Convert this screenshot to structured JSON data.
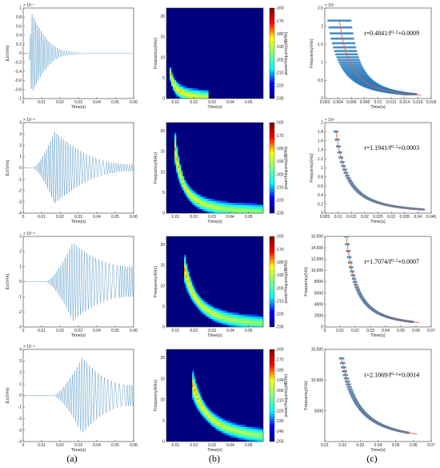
{
  "panel_labels": [
    "(a)",
    "(b)",
    "(c)"
  ],
  "colors": {
    "waveform": "#1f77b4",
    "scatter": "#2b7bc0",
    "fit": "#e8622a",
    "spec_bg": "#00007f",
    "colorbar": [
      "#00007f",
      "#0000ff",
      "#00ffff",
      "#7fff7f",
      "#ffff00",
      "#ff0000",
      "#7f0000"
    ]
  },
  "chart_data": [
    {
      "type": "line",
      "panel": "a",
      "row": 1,
      "title": "",
      "xlabel": "Time(s)",
      "ylabel": "Ez(V/m)",
      "y_exponent": "× 10⁻⁷",
      "xlim": [
        0,
        0.06
      ],
      "ylim": [
        -1,
        1
      ],
      "xticks": [
        "0",
        "0.01",
        "0.02",
        "0.03",
        "0.04",
        "0.05",
        "0.06"
      ],
      "yticks": [
        "-1",
        "-0.8",
        "-0.6",
        "-0.4",
        "-0.2",
        "0",
        "0.2",
        "0.4",
        "0.6",
        "0.8",
        "1"
      ],
      "envelope": {
        "onset": 0.003,
        "peak_time": 0.0045,
        "peak_amplitude": 0.9,
        "decay_end": 0.025,
        "tail_amplitude": 0.05
      }
    },
    {
      "type": "heatmap",
      "panel": "b",
      "row": 1,
      "xlabel": "Time(s)",
      "ylabel": "Frequency(kHz)",
      "colorbar_label": "power/frequency(dB/Hz)",
      "xlim": [
        0.005,
        0.058
      ],
      "ylim": [
        0,
        22
      ],
      "xticks": [
        "0.01",
        "0.02",
        "0.03",
        "0.04",
        "0.05"
      ],
      "yticks": [
        "0",
        "5",
        "10",
        "15",
        "20"
      ],
      "colorbar_ticks": [
        "-160",
        "-170",
        "-180",
        "-190",
        "-200",
        "-210",
        "-220",
        "-230"
      ],
      "clim": [
        -230,
        -160
      ],
      "ridge": {
        "a": 0.4841,
        "b": 0.0009,
        "t_start": 0.007,
        "t_end": 0.028
      }
    },
    {
      "type": "scatter",
      "panel": "c",
      "row": 1,
      "xlabel": "Time(s)",
      "ylabel": "Frequency(Hz)",
      "y_exponent": "× 10⁴",
      "annotation": "t=0.4841/f⁰·⁵+0.0009",
      "xlim": [
        0.002,
        0.018
      ],
      "ylim": [
        0,
        2.5
      ],
      "xticks": [
        "0.002",
        "0.004",
        "0.006",
        "0.008",
        "0.01",
        "0.012",
        "0.014",
        "0.016",
        "0.018"
      ],
      "yticks": [
        "0",
        "0.5",
        "1",
        "1.5",
        "2",
        "2.5"
      ],
      "fit": {
        "a": 0.4841,
        "b": 0.0009,
        "t_start": 0.0042,
        "t_end": 0.0165
      },
      "scatter_range": {
        "t_start": 0.0042,
        "t_end": 0.015,
        "spread": 0.003
      }
    },
    {
      "type": "line",
      "panel": "a",
      "row": 2,
      "title": "",
      "xlabel": "Time(s)",
      "ylabel": "Ez(V/m)",
      "y_exponent": "× 10⁻⁸",
      "xlim": [
        0,
        0.06
      ],
      "ylim": [
        -4,
        4
      ],
      "xticks": [
        "0",
        "0.01",
        "0.02",
        "0.03",
        "0.04",
        "0.05",
        "0.06"
      ],
      "yticks": [
        "-4",
        "-3",
        "-2",
        "-1",
        "0",
        "1",
        "2",
        "3",
        "4"
      ],
      "envelope": {
        "onset": 0.005,
        "peak_time": 0.017,
        "peak_amplitude": 3.2,
        "decay_end": 0.06,
        "tail_amplitude": 0.3
      }
    },
    {
      "type": "heatmap",
      "panel": "b",
      "row": 2,
      "xlabel": "Time(s)",
      "ylabel": "Frequency(kHz)",
      "colorbar_label": "power/frequency(dB/Hz)",
      "xlim": [
        0.005,
        0.058
      ],
      "ylim": [
        0,
        22
      ],
      "xticks": [
        "0.01",
        "0.02",
        "0.03",
        "0.04",
        "0.05"
      ],
      "yticks": [
        "0",
        "5",
        "10",
        "15",
        "20"
      ],
      "colorbar_ticks": [
        "-160",
        "-170",
        "-180",
        "-190",
        "-200",
        "-210",
        "-220",
        "-230"
      ],
      "clim": [
        -230,
        -160
      ],
      "ridge": {
        "a": 1.1941,
        "b": 0.0003,
        "t_start": 0.009,
        "t_end": 0.058
      }
    },
    {
      "type": "scatter",
      "panel": "c",
      "row": 2,
      "xlabel": "Time(s)",
      "ylabel": "Frequency(Hz)",
      "y_exponent": "× 10⁴",
      "annotation": "t=1.1941/f⁰·⁵+0.0003",
      "xlim": [
        0.005,
        0.045
      ],
      "ylim": [
        0,
        2
      ],
      "xticks": [
        "0.005",
        "0.01",
        "0.015",
        "0.02",
        "0.025",
        "0.03",
        "0.035",
        "0.04",
        "0.045"
      ],
      "yticks": [
        "0",
        "0.2",
        "0.4",
        "0.6",
        "0.8",
        "1",
        "1.2",
        "1.4",
        "1.6",
        "1.8",
        "2"
      ],
      "fit": {
        "a": 1.1941,
        "b": 0.0003,
        "t_start": 0.0092,
        "t_end": 0.043
      },
      "scatter_range": {
        "t_start": 0.0092,
        "t_end": 0.042,
        "spread": 0.0015
      }
    },
    {
      "type": "line",
      "panel": "a",
      "row": 3,
      "title": "",
      "xlabel": "Time(s)",
      "ylabel": "Ez(V/m)",
      "y_exponent": "× 10⁻⁸",
      "xlim": [
        0,
        0.06
      ],
      "ylim": [
        -3,
        3
      ],
      "xticks": [
        "0",
        "0.01",
        "0.02",
        "0.03",
        "0.04",
        "0.05",
        "0.06"
      ],
      "yticks": [
        "-3",
        "-2",
        "-1",
        "0",
        "1",
        "2",
        "3"
      ],
      "envelope": {
        "onset": 0.012,
        "peak_time": 0.027,
        "peak_amplitude": 2.6,
        "decay_end": 0.06,
        "tail_amplitude": 1.0
      }
    },
    {
      "type": "heatmap",
      "panel": "b",
      "row": 3,
      "xlabel": "Time(s)",
      "ylabel": "Frequency(kHz)",
      "colorbar_label": "power/frequency(dB/Hz)",
      "xlim": [
        0.005,
        0.058
      ],
      "ylim": [
        0,
        22
      ],
      "xticks": [
        "0.01",
        "0.02",
        "0.03",
        "0.04",
        "0.05"
      ],
      "yticks": [
        "0",
        "5",
        "10",
        "15",
        "20"
      ],
      "colorbar_ticks": [
        "-160",
        "-170",
        "-180",
        "-190",
        "-200",
        "-210",
        "-220",
        "-230"
      ],
      "clim": [
        -230,
        -160
      ],
      "ridge": {
        "a": 1.7074,
        "b": 0.0007,
        "t_start": 0.0145,
        "t_end": 0.058
      }
    },
    {
      "type": "scatter",
      "panel": "c",
      "row": 3,
      "xlabel": "Time(s)",
      "ylabel": "Frequency(Hz)",
      "annotation": "t=1.7074/f⁰·⁵+0.0007",
      "xlim": [
        0,
        0.07
      ],
      "ylim": [
        0,
        16000
      ],
      "xticks": [
        "0",
        "0.01",
        "0.02",
        "0.03",
        "0.04",
        "0.05",
        "0.06",
        "0.07"
      ],
      "yticks": [
        "0",
        "2000",
        "4000",
        "6000",
        "8000",
        "10,000",
        "12,000",
        "14,000",
        "16,000"
      ],
      "fit": {
        "a": 1.7074,
        "b": 0.0007,
        "t_start": 0.0142,
        "t_end": 0.062
      },
      "scatter_range": {
        "t_start": 0.0142,
        "t_end": 0.058,
        "spread": 0.0025
      }
    },
    {
      "type": "line",
      "panel": "a",
      "row": 4,
      "title": "",
      "xlabel": "Time(s)",
      "ylabel": "Ez(V/m)",
      "y_exponent": "× 10⁻⁸",
      "xlim": [
        0,
        0.06
      ],
      "ylim": [
        -4,
        4
      ],
      "xticks": [
        "0",
        "0.01",
        "0.02",
        "0.03",
        "0.04",
        "0.05",
        "0.06"
      ],
      "yticks": [
        "-4",
        "-3",
        "-2",
        "-1",
        "0",
        "1",
        "2",
        "3",
        "4"
      ],
      "envelope": {
        "onset": 0.016,
        "peak_time": 0.032,
        "peak_amplitude": 3.3,
        "decay_end": 0.06,
        "tail_amplitude": 0.9
      }
    },
    {
      "type": "heatmap",
      "panel": "b",
      "row": 4,
      "xlabel": "Time(s)",
      "ylabel": "Frequency(kHz)",
      "colorbar_label": "power/frequency(dB/Hz)",
      "xlim": [
        0.005,
        0.058
      ],
      "ylim": [
        0,
        22
      ],
      "xticks": [
        "0.01",
        "0.02",
        "0.03",
        "0.04",
        "0.05"
      ],
      "yticks": [
        "0",
        "5",
        "10",
        "15",
        "20"
      ],
      "colorbar_ticks": [
        "-160",
        "-170",
        "-180",
        "-190",
        "-200",
        "-210",
        "-220",
        "-230",
        "-240",
        "-250"
      ],
      "clim": [
        -250,
        -160
      ],
      "ridge": {
        "a": 2.1069,
        "b": 0.0014,
        "t_start": 0.019,
        "t_end": 0.058
      }
    },
    {
      "type": "scatter",
      "panel": "c",
      "row": 4,
      "xlabel": "Time(s)",
      "ylabel": "Frequency(Hz)",
      "annotation": "t=2.1069/f⁰·⁵+0.0014",
      "xlim": [
        0.01,
        0.07
      ],
      "ylim": [
        0,
        15000
      ],
      "xticks": [
        "0.01",
        "0.02",
        "0.03",
        "0.04",
        "0.05",
        "0.06",
        "0.07"
      ],
      "yticks": [
        "5000",
        "10,000",
        "15,000"
      ],
      "fit": {
        "a": 2.1069,
        "b": 0.0014,
        "t_start": 0.0195,
        "t_end": 0.062
      },
      "scatter_range": {
        "t_start": 0.0195,
        "t_end": 0.057,
        "spread": 0.0025
      }
    }
  ]
}
